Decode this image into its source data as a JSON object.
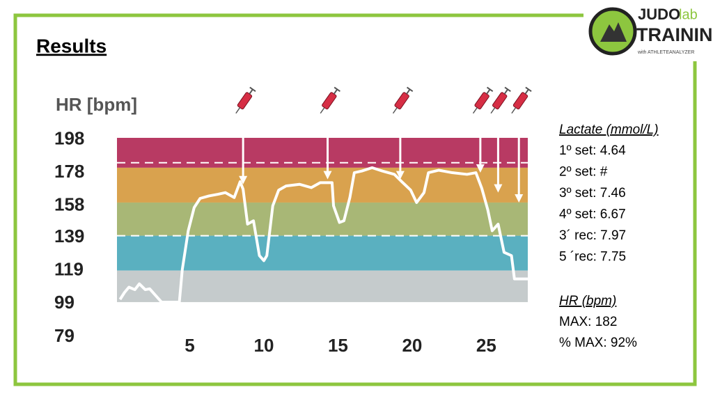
{
  "slide": {
    "title": "Results",
    "lactate_heading": "Lactate (mmol/L)",
    "lactate_lines": [
      "1º set: 4.64",
      "2º set: #",
      "3º set: 7.46",
      "4º set: 6.67",
      "3´ rec: 7.97",
      "5 ´rec: 7.75"
    ],
    "hr_heading": "HR (bpm)",
    "hr_lines": [
      "MAX: 182",
      "% MAX: 92%"
    ],
    "logo": {
      "word1": "JUDO",
      "word2": "lab",
      "word3": "TRAINING",
      "tagline": "with ATHLETEANALYZER"
    }
  },
  "chart_data": {
    "type": "line",
    "y_label": "HR [bpm]",
    "color": "#ffffff",
    "x": [
      0.3,
      0.6,
      0.9,
      1.3,
      1.6,
      2.0,
      2.3,
      2.7,
      3.1,
      4.3,
      4.5,
      4.9,
      5.3,
      5.7,
      6.3,
      6.9,
      7.4,
      8.0,
      8.4,
      8.6,
      8.9,
      9.3,
      9.7,
      10.0,
      10.2,
      10.6,
      11.0,
      11.5,
      12.4,
      13.2,
      13.8,
      14.3,
      14.6,
      14.7,
      15.1,
      15.4,
      15.8,
      16.1,
      16.6,
      17.3,
      18.0,
      18.8,
      19.3,
      19.9,
      20.3,
      20.8,
      21.1,
      21.8,
      22.7,
      23.7,
      24.3,
      24.7,
      25.1,
      25.4,
      25.8,
      26.2,
      26.7,
      26.9,
      27.8
    ],
    "values": [
      101.6,
      105.8,
      109,
      107.5,
      111,
      107.5,
      108,
      104,
      100,
      100,
      119.7,
      143,
      157,
      162.5,
      164,
      165,
      166,
      163,
      172.6,
      168,
      147,
      149,
      128,
      125,
      128,
      158,
      167.5,
      170,
      171,
      169,
      172,
      172,
      172,
      158,
      148,
      149,
      163,
      178,
      179,
      181,
      179,
      177,
      172.6,
      167.5,
      160,
      166,
      178,
      179.5,
      178,
      177,
      178,
      168.5,
      155.7,
      143,
      147,
      130,
      128,
      114,
      114
    ],
    "zones": [
      {
        "from": 181,
        "to": 199,
        "color": "#b83a63"
      },
      {
        "from": 160,
        "to": 181,
        "color": "#d9a24e"
      },
      {
        "from": 140,
        "to": 160,
        "color": "#a8b776"
      },
      {
        "from": 119,
        "to": 140,
        "color": "#5ab0c0"
      },
      {
        "from": 100,
        "to": 119,
        "color": "#c5cbcc"
      }
    ],
    "reference_lines": [
      184,
      140
    ],
    "sample_x": [
      8.6,
      14.3,
      19.2,
      24.6,
      25.8,
      27.2
    ],
    "sample_y": [
      171,
      174,
      174,
      178,
      166,
      160
    ],
    "xlim": [
      0,
      27.8
    ],
    "ylim": [
      79,
      199
    ],
    "xticks": [
      5,
      10,
      15,
      20,
      25
    ],
    "yticks": [
      79,
      99,
      119,
      139,
      158,
      178,
      198
    ]
  }
}
